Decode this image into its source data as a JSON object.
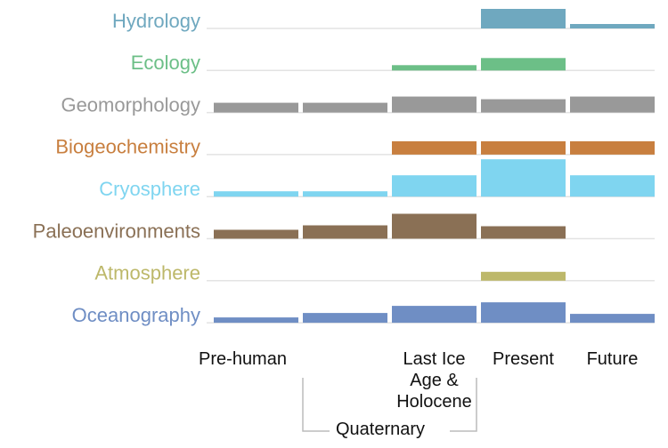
{
  "chart_data": {
    "type": "bar",
    "categories": [
      "Pre-human",
      null,
      "Last Ice Age & Holocene",
      "Present",
      "Future"
    ],
    "annotation": "Quaternary",
    "ylim": [
      0,
      45
    ],
    "series": [
      {
        "name": "Hydrology",
        "color": "#6fa8bf",
        "values": [
          null,
          null,
          null,
          22,
          5
        ]
      },
      {
        "name": "Ecology",
        "color": "#6cbf87",
        "values": [
          null,
          null,
          6,
          14,
          null
        ]
      },
      {
        "name": "Geomorphology",
        "color": "#999999",
        "values": [
          11,
          11,
          18,
          15,
          18
        ]
      },
      {
        "name": "Biogeochemistry",
        "color": "#c87f3f",
        "values": [
          null,
          null,
          15,
          15,
          15
        ]
      },
      {
        "name": "Cryosphere",
        "color": "#7fd5f0",
        "values": [
          6,
          6,
          24,
          42,
          24
        ]
      },
      {
        "name": "Paleoenvironments",
        "color": "#8a7055",
        "values": [
          10,
          15,
          28,
          14,
          null
        ]
      },
      {
        "name": "Atmosphere",
        "color": "#bdb86a",
        "values": [
          null,
          null,
          null,
          10,
          null
        ]
      },
      {
        "name": "Oceanography",
        "color": "#6f8ec4",
        "values": [
          6,
          11,
          19,
          23,
          10
        ]
      }
    ]
  }
}
